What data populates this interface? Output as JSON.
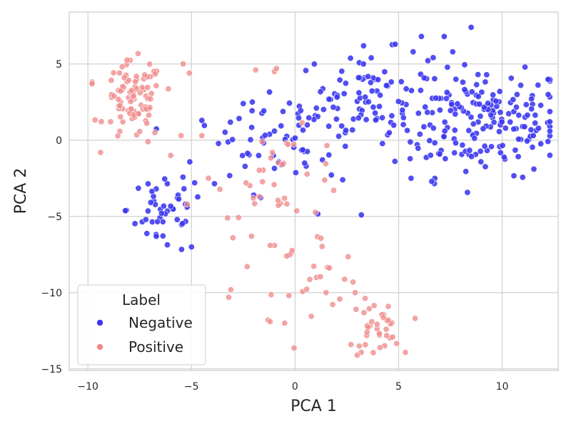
{
  "chart_data": {
    "type": "scatter",
    "title": "",
    "xlabel": "PCA 1",
    "ylabel": "PCA 2",
    "xlim": [
      -10.9,
      12.7
    ],
    "ylim": [
      -15.1,
      8.4
    ],
    "grid": true,
    "xticks": [
      -10,
      -5,
      0,
      5,
      10
    ],
    "xtick_labels": [
      "−10",
      "−5",
      "0",
      "5",
      "10"
    ],
    "yticks": [
      -15,
      -10,
      -5,
      0,
      5
    ],
    "ytick_labels": [
      "−15",
      "−10",
      "−5",
      "0",
      "5"
    ],
    "legend": {
      "title": "Label",
      "placement": "lower-left",
      "entries": [
        "Negative",
        "Positive"
      ]
    },
    "colors": {
      "Negative": "#3a35f0",
      "Positive": "#f08a8a",
      "grid": "#cccccc",
      "spine": "#cccccc",
      "point_edge": "#ffffff",
      "tick_text": "#262626",
      "label_text": "#262626"
    },
    "series": [
      {
        "name": "Negative",
        "clusters": [
          {
            "cx": 9.0,
            "cy": 1.3,
            "sx": 2.2,
            "sy": 1.8,
            "n": 190
          },
          {
            "cx": 3.4,
            "cy": 2.8,
            "sx": 1.6,
            "sy": 1.5,
            "n": 80
          },
          {
            "cx": 0.5,
            "cy": 0.5,
            "sx": 1.2,
            "sy": 1.0,
            "n": 30
          },
          {
            "cx": -2.5,
            "cy": -1.0,
            "sx": 1.6,
            "sy": 1.5,
            "n": 35
          },
          {
            "cx": -6.3,
            "cy": -4.5,
            "sx": 0.9,
            "sy": 1.6,
            "n": 45
          }
        ],
        "points": [
          [
            8.5,
            7.4
          ],
          [
            6.1,
            6.8
          ],
          [
            7.2,
            6.8
          ],
          [
            5.7,
            5.8
          ],
          [
            3.3,
            5.0
          ],
          [
            2.3,
            -2.6
          ],
          [
            3.2,
            -4.9
          ],
          [
            -5.0,
            -7.0
          ],
          [
            -2.5,
            2.4
          ],
          [
            11.5,
            0.3
          ],
          [
            11.1,
            4.8
          ],
          [
            -4.5,
            1.3
          ],
          [
            -7.2,
            -5.2
          ],
          [
            6.6,
            -2.7
          ],
          [
            5.6,
            -2.5
          ]
        ]
      },
      {
        "name": "Positive",
        "clusters": [
          {
            "cx": -7.8,
            "cy": 2.5,
            "sx": 0.7,
            "sy": 1.3,
            "n": 90
          },
          {
            "cx": -0.6,
            "cy": -2.2,
            "sx": 1.6,
            "sy": 1.4,
            "n": 35
          },
          {
            "cx": 0.7,
            "cy": -8.4,
            "sx": 1.3,
            "sy": 1.3,
            "n": 25
          },
          {
            "cx": 3.9,
            "cy": -12.4,
            "sx": 0.6,
            "sy": 0.9,
            "n": 30
          }
        ],
        "points": [
          [
            -9.8,
            3.7
          ],
          [
            -5.4,
            5.0
          ],
          [
            -5.1,
            4.4
          ],
          [
            -1.9,
            4.6
          ],
          [
            -1.0,
            4.5
          ],
          [
            -0.9,
            4.7
          ],
          [
            -3.0,
            -6.4
          ],
          [
            -2.1,
            -6.3
          ],
          [
            -3.1,
            -9.8
          ],
          [
            -3.2,
            -10.3
          ],
          [
            -1.2,
            -6.9
          ],
          [
            -1.3,
            -11.8
          ],
          [
            -1.2,
            -11.9
          ],
          [
            -0.5,
            -12.0
          ],
          [
            -5.2,
            -4.2
          ],
          [
            -4.5,
            0.3
          ],
          [
            -7.1,
            -0.1
          ],
          [
            -6.0,
            -1.0
          ],
          [
            -5.5,
            0.3
          ],
          [
            2.9,
            -10.0
          ],
          [
            3.1,
            -13.5
          ],
          [
            2.7,
            -13.4
          ],
          [
            3.0,
            -14.1
          ],
          [
            4.1,
            -13.6
          ],
          [
            4.5,
            -10.9
          ],
          [
            4.4,
            -12.4
          ],
          [
            4.5,
            -11.8
          ],
          [
            3.7,
            -11.9
          ],
          [
            2.8,
            -9.3
          ],
          [
            1.5,
            -10.0
          ]
        ]
      }
    ]
  }
}
